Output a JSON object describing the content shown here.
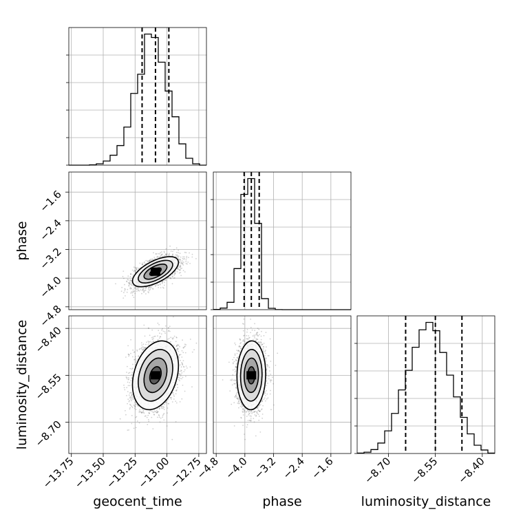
{
  "chart_data": {
    "type": "corner",
    "parameters": [
      "geocent_time",
      "phase",
      "luminosity_distance"
    ],
    "ranges": {
      "geocent_time": [
        -13.77,
        -12.69
      ],
      "phase": [
        -4.88,
        -1.04
      ],
      "luminosity_distance": [
        -8.8,
        -8.36
      ]
    },
    "ticks": {
      "geocent_time": [
        -13.75,
        -13.5,
        -13.25,
        -13.0,
        -12.75
      ],
      "phase": [
        -4.8,
        -4.0,
        -3.2,
        -2.4,
        -1.6
      ],
      "luminosity_distance": [
        -8.7,
        -8.55,
        -8.4
      ]
    },
    "tick_labels": {
      "geocent_time": [
        "−13.75",
        "−13.50",
        "−13.25",
        "−13.00",
        "−12.75"
      ],
      "phase": [
        "−4.8",
        "−4.0",
        "−3.2",
        "−2.4",
        "−1.6"
      ],
      "luminosity_distance": [
        "−8.70",
        "−8.55",
        "−8.40"
      ]
    },
    "histograms": {
      "geocent_time": {
        "bin_edges": [
          -13.77,
          -13.716,
          -13.662,
          -13.608,
          -13.554,
          -13.5,
          -13.446,
          -13.392,
          -13.338,
          -13.284,
          -13.23,
          -13.176,
          -13.122,
          -13.068,
          -13.014,
          -12.96,
          -12.906,
          -12.852,
          -12.798,
          -12.744,
          -12.69
        ],
        "counts": [
          0,
          0,
          0,
          1,
          4,
          12,
          29,
          57,
          111,
          209,
          265,
          382,
          372,
          300,
          216,
          141,
          62,
          20,
          4,
          0
        ]
      },
      "phase": {
        "bin_edges": [
          -4.88,
          -4.688,
          -4.496,
          -4.304,
          -4.112,
          -3.92,
          -3.728,
          -3.536,
          -3.344,
          -3.152,
          -2.96,
          -2.768,
          -2.576,
          -2.384,
          -2.192,
          -2.0,
          -1.808,
          -1.616,
          -1.424,
          -1.232,
          -1.04
        ],
        "counts": [
          2,
          15,
          70,
          390,
          1095,
          1245,
          820,
          105,
          13,
          1,
          0,
          0,
          0,
          0,
          0,
          0,
          0,
          0,
          0,
          0
        ]
      },
      "luminosity_distance": {
        "bin_edges": [
          -8.8,
          -8.778,
          -8.756,
          -8.734,
          -8.712,
          -8.69,
          -8.668,
          -8.646,
          -8.624,
          -8.602,
          -8.58,
          -8.558,
          -8.536,
          -8.514,
          -8.492,
          -8.47,
          -8.448,
          -8.426,
          -8.404,
          -8.382,
          -8.36
        ],
        "counts": [
          1,
          3,
          9,
          24,
          52,
          92,
          146,
          191,
          244,
          284,
          301,
          282,
          232,
          180,
          130,
          83,
          45,
          19,
          8,
          1
        ]
      }
    },
    "quantiles": {
      "geocent_time": [
        -13.195,
        -13.09,
        -12.985
      ],
      "phase": [
        -4.02,
        -3.82,
        -3.6
      ],
      "luminosity_distance": [
        -8.645,
        -8.55,
        -8.465
      ]
    },
    "pairs": [
      {
        "x": "geocent_time",
        "y": "phase",
        "mean": [
          -13.09,
          -3.82
        ],
        "std": [
          0.09,
          0.21
        ],
        "corr": 0.62
      },
      {
        "x": "geocent_time",
        "y": "luminosity_distance",
        "mean": [
          -13.09,
          -8.55
        ],
        "std": [
          0.09,
          0.055
        ],
        "corr": 0.28
      },
      {
        "x": "phase",
        "y": "luminosity_distance",
        "mean": [
          -3.82,
          -8.55
        ],
        "std": [
          0.2,
          0.055
        ],
        "corr": 0.04
      }
    ],
    "contour_levels_sigma": [
      0.5,
      1.0,
      1.5,
      2.0
    ],
    "grid": true
  }
}
